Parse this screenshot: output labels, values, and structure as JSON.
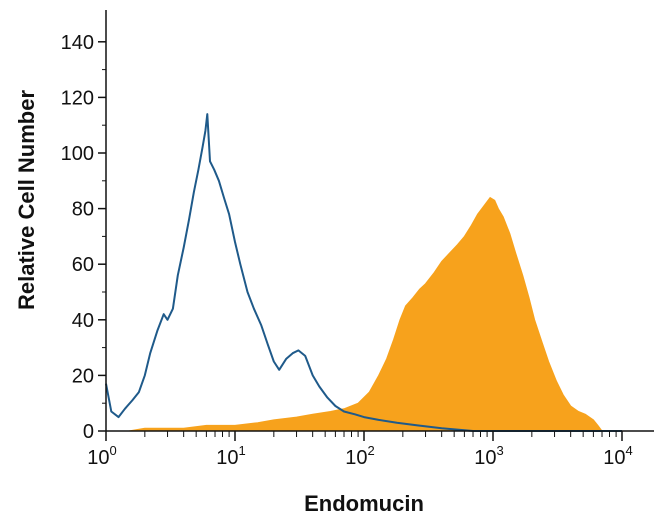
{
  "chart_data": {
    "type": "area",
    "xlabel": "Endomucin",
    "ylabel": "Relative Cell Number",
    "xscale": "log",
    "xlim": [
      1,
      10000
    ],
    "ylim": [
      0,
      150
    ],
    "y_ticks": [
      "0",
      "20",
      "40",
      "60",
      "80",
      "100",
      "120",
      "140"
    ],
    "x_ticks": [
      {
        "base": "10",
        "exp": "0"
      },
      {
        "base": "10",
        "exp": "1"
      },
      {
        "base": "10",
        "exp": "2"
      },
      {
        "base": "10",
        "exp": "3"
      },
      {
        "base": "10",
        "exp": "4"
      }
    ],
    "grid": false,
    "series": [
      {
        "style": "filled",
        "color": "#f7a21c",
        "points": [
          [
            1,
            0
          ],
          [
            1.5,
            0
          ],
          [
            2,
            1
          ],
          [
            3,
            1
          ],
          [
            4,
            1
          ],
          [
            6,
            2
          ],
          [
            8,
            2
          ],
          [
            10,
            2
          ],
          [
            15,
            3
          ],
          [
            20,
            4
          ],
          [
            30,
            5
          ],
          [
            40,
            6
          ],
          [
            55,
            7
          ],
          [
            70,
            8
          ],
          [
            90,
            10
          ],
          [
            110,
            14
          ],
          [
            130,
            20
          ],
          [
            150,
            26
          ],
          [
            170,
            33
          ],
          [
            190,
            40
          ],
          [
            210,
            45
          ],
          [
            240,
            48
          ],
          [
            270,
            51
          ],
          [
            300,
            53
          ],
          [
            350,
            57
          ],
          [
            400,
            61
          ],
          [
            460,
            64
          ],
          [
            530,
            67
          ],
          [
            600,
            70
          ],
          [
            680,
            74
          ],
          [
            760,
            78
          ],
          [
            850,
            81
          ],
          [
            950,
            84
          ],
          [
            1030,
            83
          ],
          [
            1100,
            80
          ],
          [
            1200,
            77
          ],
          [
            1350,
            71
          ],
          [
            1500,
            64
          ],
          [
            1700,
            56
          ],
          [
            1900,
            48
          ],
          [
            2100,
            40
          ],
          [
            2400,
            32
          ],
          [
            2700,
            25
          ],
          [
            3100,
            18
          ],
          [
            3500,
            13
          ],
          [
            4000,
            9
          ],
          [
            4600,
            7
          ],
          [
            5200,
            6
          ],
          [
            6000,
            4
          ],
          [
            6500,
            2
          ],
          [
            7000,
            0
          ]
        ]
      },
      {
        "style": "outline",
        "color": "#1f5a8a",
        "points": [
          [
            1,
            17
          ],
          [
            1.1,
            7
          ],
          [
            1.25,
            5
          ],
          [
            1.4,
            8
          ],
          [
            1.6,
            11
          ],
          [
            1.8,
            14
          ],
          [
            2,
            20
          ],
          [
            2.2,
            28
          ],
          [
            2.5,
            36
          ],
          [
            2.8,
            42
          ],
          [
            3,
            40
          ],
          [
            3.3,
            44
          ],
          [
            3.6,
            56
          ],
          [
            4,
            66
          ],
          [
            4.4,
            76
          ],
          [
            4.8,
            86
          ],
          [
            5.2,
            94
          ],
          [
            5.6,
            102
          ],
          [
            5.9,
            108
          ],
          [
            6.1,
            114
          ],
          [
            6.4,
            97
          ],
          [
            6.9,
            94
          ],
          [
            7.5,
            90
          ],
          [
            8.2,
            84
          ],
          [
            9,
            78
          ],
          [
            10,
            68
          ],
          [
            11,
            60
          ],
          [
            12.5,
            50
          ],
          [
            14,
            44
          ],
          [
            16,
            38
          ],
          [
            18,
            31
          ],
          [
            20,
            25
          ],
          [
            22,
            22
          ],
          [
            25,
            26
          ],
          [
            28,
            28
          ],
          [
            31,
            29
          ],
          [
            35,
            27
          ],
          [
            40,
            20
          ],
          [
            45,
            16
          ],
          [
            52,
            12
          ],
          [
            60,
            9
          ],
          [
            70,
            7
          ],
          [
            85,
            6
          ],
          [
            100,
            5
          ],
          [
            130,
            4
          ],
          [
            180,
            3
          ],
          [
            260,
            2
          ],
          [
            400,
            1
          ],
          [
            700,
            0
          ],
          [
            10000,
            0
          ]
        ]
      }
    ]
  }
}
